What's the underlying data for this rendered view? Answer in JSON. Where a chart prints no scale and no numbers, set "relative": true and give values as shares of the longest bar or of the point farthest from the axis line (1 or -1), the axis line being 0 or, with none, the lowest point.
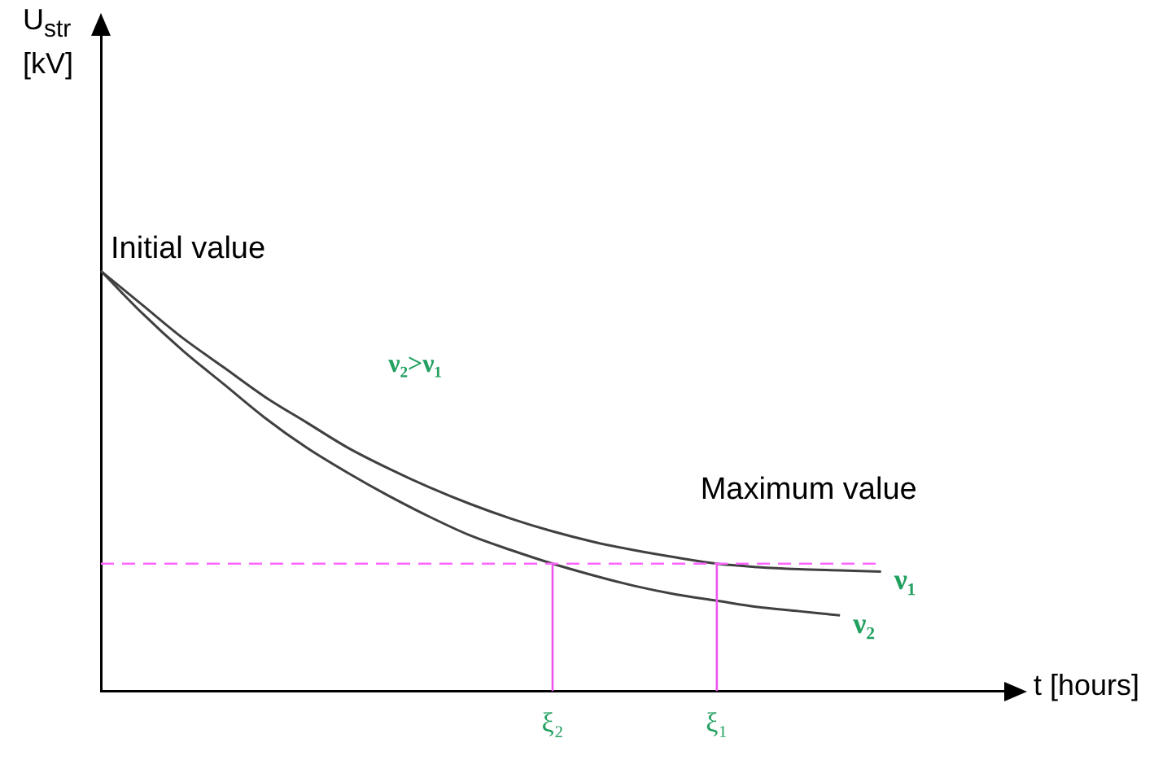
{
  "chart_data": {
    "type": "line",
    "relative": true,
    "xlabel": "t [hours]",
    "categories": [
      null,
      null,
      null,
      null,
      null,
      null,
      null,
      null,
      null,
      null,
      null,
      "ξ₂",
      null,
      null,
      null,
      "ξ₁",
      null,
      null,
      null,
      null,
      null,
      null,
      null
    ],
    "series": [
      {
        "name": "ν₁",
        "color": "#404040",
        "values": [
          1,
          0.92,
          0.84,
          0.77,
          0.7,
          0.64,
          0.58,
          0.53,
          0.485,
          0.445,
          0.41,
          0.38,
          0.355,
          0.335,
          0.318,
          0.303,
          0.295,
          0.29,
          0.287,
          0.284,
          null,
          null,
          null
        ]
      },
      {
        "name": "ν₂",
        "color": "#404040",
        "values": [
          1,
          0.9,
          0.81,
          0.73,
          0.65,
          0.58,
          0.52,
          0.465,
          0.415,
          0.37,
          0.335,
          0.303,
          0.275,
          0.25,
          0.23,
          0.215,
          0.2,
          0.19,
          0.18,
          null,
          null,
          null,
          null
        ]
      }
    ],
    "ref_lines": [
      {
        "axis": "y",
        "value": 0.303,
        "color": "#ff66ff",
        "line_style": "dashed",
        "label": "Maximum value"
      },
      {
        "axis": "x",
        "value": "ξ₂",
        "color": "#ee55ee"
      },
      {
        "axis": "x",
        "value": "ξ₁",
        "color": "#ee55ee"
      }
    ],
    "annotations": [
      "Initial value",
      "ν₂>ν₁",
      "U$_{str}$ [kV]"
    ],
    "grid": false,
    "legend": false,
    "tick_labels": "x",
    "marker": "none",
    "line_style": "solid"
  }
}
